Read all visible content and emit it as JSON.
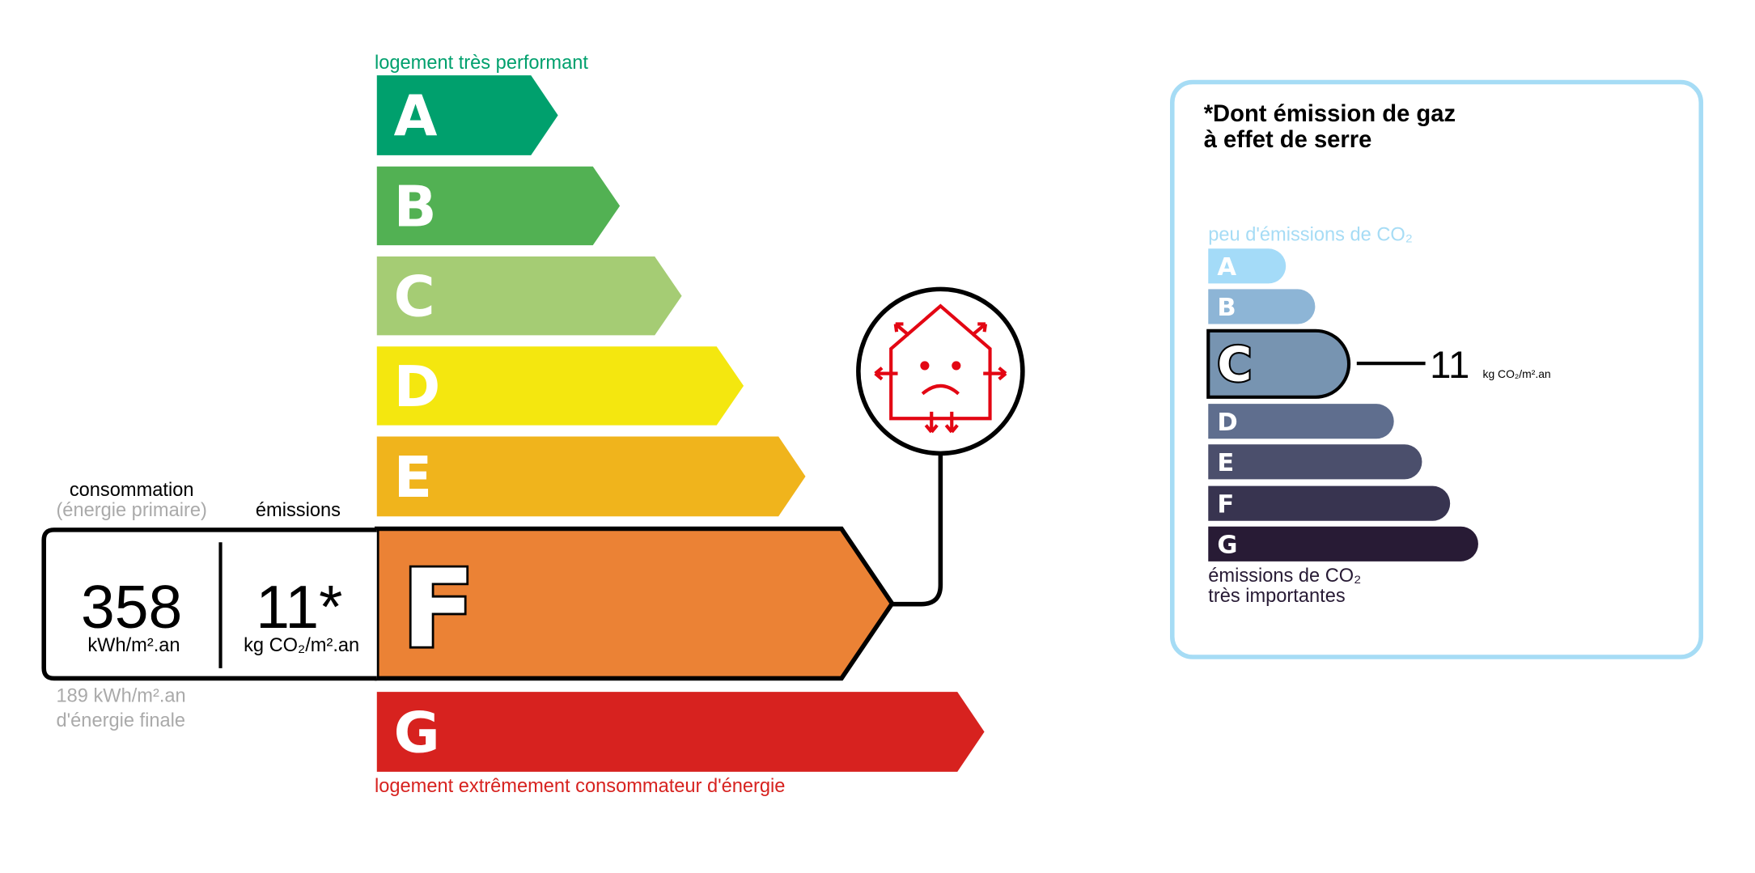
{
  "energy": {
    "top_label": "logement très performant",
    "bottom_label": "logement extrêmement consommateur d'énergie",
    "classes": [
      {
        "letter": "A",
        "color": "#00a06d"
      },
      {
        "letter": "B",
        "color": "#52b153"
      },
      {
        "letter": "C",
        "color": "#a5cc74"
      },
      {
        "letter": "D",
        "color": "#f4e70f"
      },
      {
        "letter": "E",
        "color": "#f0b41c"
      },
      {
        "letter": "F",
        "color": "#eb8235"
      },
      {
        "letter": "G",
        "color": "#d7221f"
      }
    ],
    "current_class": "F",
    "consumption_label": "consommation",
    "consumption_sublabel": "(énergie primaire)",
    "emissions_label": "émissions",
    "consumption_value": "358",
    "consumption_unit": "kWh/m².an",
    "emissions_value": "11*",
    "emissions_unit": "kg CO₂/m².an",
    "final_energy_value": "189 kWh/m².an",
    "final_energy_label": "d'énergie finale",
    "icon": "poorly-insulated-house-icon"
  },
  "ges": {
    "title_line1": "*Dont émission de gaz",
    "title_line2": "à effet de serre",
    "top_label": "peu d'émissions de CO₂",
    "bottom_label_line1": "émissions de CO₂",
    "bottom_label_line2": "très importantes",
    "classes": [
      {
        "letter": "A",
        "color": "#a4dbf8"
      },
      {
        "letter": "B",
        "color": "#8db5d6"
      },
      {
        "letter": "C",
        "color": "#7794b1"
      },
      {
        "letter": "D",
        "color": "#5f6e8e"
      },
      {
        "letter": "E",
        "color": "#4b4f6c"
      },
      {
        "letter": "F",
        "color": "#383450"
      },
      {
        "letter": "G",
        "color": "#281b35"
      }
    ],
    "current_class": "C",
    "value": "11",
    "unit": "kg CO₂/m².an",
    "border_color": "#a6dcf5"
  }
}
